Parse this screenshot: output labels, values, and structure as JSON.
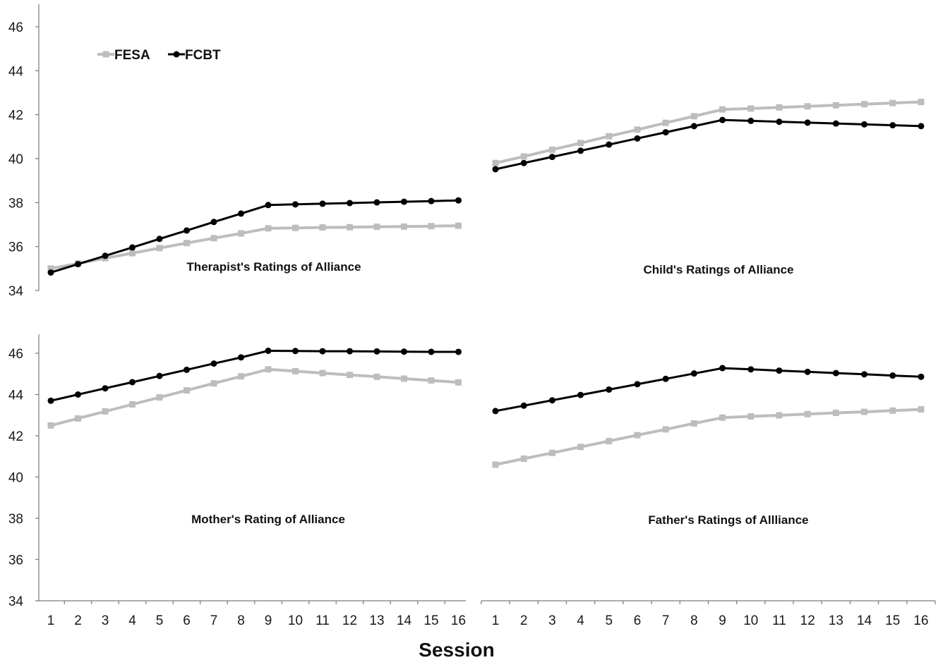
{
  "chart_data": {
    "type": "line",
    "xlabel": "Session",
    "legend": {
      "placement": "top-left",
      "entries": [
        {
          "name": "FESA",
          "color": "#bdbdbd",
          "marker": "square"
        },
        {
          "name": "FCBT",
          "color": "#000000",
          "marker": "circle"
        }
      ]
    },
    "x": [
      1,
      2,
      3,
      4,
      5,
      6,
      7,
      8,
      9,
      10,
      11,
      12,
      13,
      14,
      15,
      16
    ],
    "ylim": [
      34,
      46
    ],
    "yticks": [
      34,
      36,
      38,
      40,
      42,
      44,
      46
    ],
    "grid": false,
    "panels": [
      {
        "title": "Therapist's Ratings of Alliance",
        "series": [
          {
            "name": "FESA",
            "values": [
              35.0,
              35.23,
              35.47,
              35.7,
              35.93,
              36.16,
              36.38,
              36.6,
              36.83,
              36.85,
              36.87,
              36.88,
              36.9,
              36.91,
              36.93,
              36.95
            ]
          },
          {
            "name": "FCBT",
            "values": [
              34.82,
              35.2,
              35.58,
              35.96,
              36.35,
              36.73,
              37.12,
              37.5,
              37.89,
              37.92,
              37.95,
              37.98,
              38.01,
              38.04,
              38.07,
              38.1
            ]
          }
        ]
      },
      {
        "title": "Child's Ratings of Alliance",
        "series": [
          {
            "name": "FESA",
            "values": [
              39.8,
              40.1,
              40.41,
              40.71,
              41.02,
              41.32,
              41.63,
              41.93,
              42.24,
              42.28,
              42.33,
              42.38,
              42.43,
              42.48,
              42.53,
              42.58
            ]
          },
          {
            "name": "FCBT",
            "values": [
              39.52,
              39.8,
              40.08,
              40.36,
              40.64,
              40.92,
              41.2,
              41.48,
              41.76,
              41.72,
              41.68,
              41.64,
              41.6,
              41.56,
              41.52,
              41.48
            ]
          }
        ]
      },
      {
        "title": "Mother's Rating of Alliance",
        "series": [
          {
            "name": "FESA",
            "values": [
              42.5,
              42.84,
              43.18,
              43.52,
              43.86,
              44.2,
              44.54,
              44.88,
              45.22,
              45.13,
              45.04,
              44.95,
              44.86,
              44.77,
              44.68,
              44.59
            ]
          },
          {
            "name": "FCBT",
            "values": [
              43.7,
              44.0,
              44.3,
              44.6,
              44.9,
              45.2,
              45.5,
              45.8,
              46.12,
              46.11,
              46.1,
              46.1,
              46.09,
              46.08,
              46.07,
              46.07
            ]
          }
        ]
      },
      {
        "title": "Father's Ratings of Allliance",
        "series": [
          {
            "name": "FESA",
            "values": [
              40.6,
              40.89,
              41.17,
              41.46,
              41.74,
              42.03,
              42.31,
              42.6,
              42.88,
              42.94,
              42.99,
              43.05,
              43.11,
              43.16,
              43.22,
              43.28
            ]
          },
          {
            "name": "FCBT",
            "values": [
              43.2,
              43.46,
              43.72,
              43.98,
              44.24,
              44.5,
              44.76,
              45.02,
              45.28,
              45.22,
              45.16,
              45.1,
              45.04,
              44.98,
              44.92,
              44.86
            ]
          }
        ]
      }
    ]
  }
}
